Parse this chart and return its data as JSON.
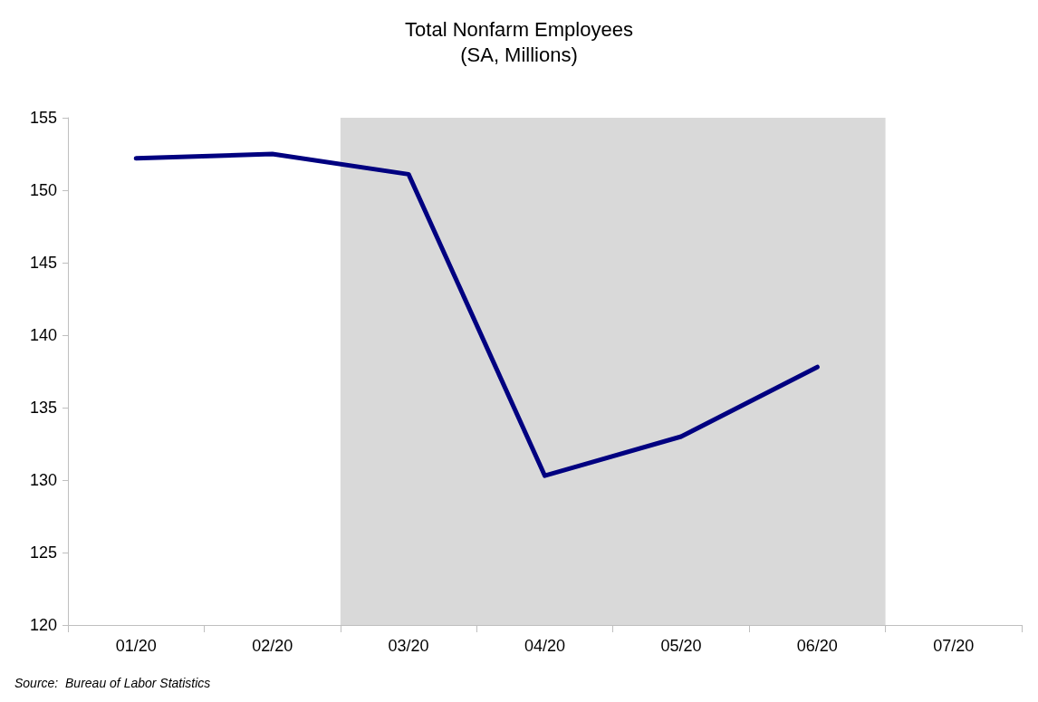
{
  "chart_data": {
    "type": "line",
    "title": "Total Nonfarm Employees",
    "subtitle": "(SA, Millions)",
    "categories": [
      "01/20",
      "02/20",
      "03/20",
      "04/20",
      "05/20",
      "06/20",
      "07/20"
    ],
    "series": [
      {
        "color": "#000080",
        "values": [
          152.2,
          152.5,
          151.1,
          130.3,
          133.0,
          137.8,
          null
        ]
      }
    ],
    "ylim": [
      120,
      155
    ],
    "yticks": [
      120,
      125,
      130,
      135,
      140,
      145,
      150,
      155
    ],
    "bands": [
      {
        "axis": "x",
        "from": "03/20",
        "to": "06/20",
        "color": "#d9d9d9"
      }
    ],
    "grid": false,
    "marker": "none",
    "line_style": "solid",
    "annotations": [
      "Source:  Bureau of Labor Statistics"
    ]
  }
}
